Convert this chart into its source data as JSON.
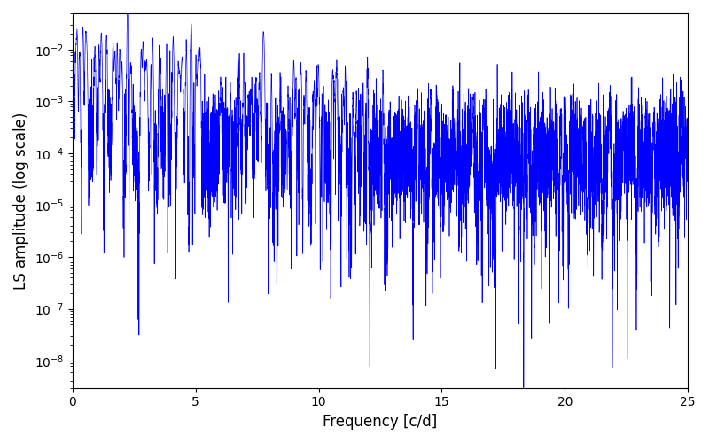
{
  "xlabel": "Frequency [c/d]",
  "ylabel": "LS amplitude (log scale)",
  "title": "",
  "line_color": "#0000ff",
  "line_width": 0.5,
  "xlim": [
    0,
    25
  ],
  "ylim": [
    3e-09,
    0.05
  ],
  "yscale": "log",
  "freq_min": 0.0,
  "freq_max": 25.0,
  "n_points": 10000,
  "seed": 7,
  "background_color": "#ffffff",
  "figsize": [
    8.0,
    5.0
  ],
  "dpi": 100
}
